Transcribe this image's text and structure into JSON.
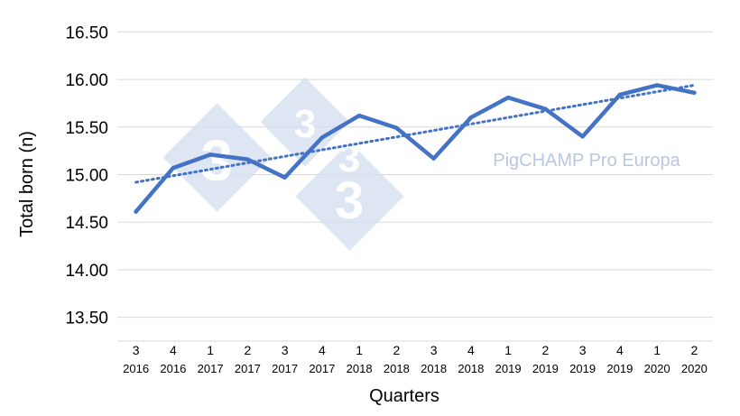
{
  "chart_data": {
    "type": "line",
    "title": "",
    "xlabel": "Quarters",
    "ylabel": "Total born (n)",
    "ylim": [
      13.25,
      16.75
    ],
    "yticks": [
      "16.50",
      "16.00",
      "15.50",
      "15.00",
      "14.50",
      "14.00",
      "13.50"
    ],
    "ytick_values": [
      16.5,
      16.0,
      15.5,
      15.0,
      14.5,
      14.0,
      13.5
    ],
    "categories": [
      {
        "quarter": "3",
        "year": "2016"
      },
      {
        "quarter": "4",
        "year": "2016"
      },
      {
        "quarter": "1",
        "year": "2017"
      },
      {
        "quarter": "2",
        "year": "2017"
      },
      {
        "quarter": "3",
        "year": "2017"
      },
      {
        "quarter": "4",
        "year": "2017"
      },
      {
        "quarter": "1",
        "year": "2018"
      },
      {
        "quarter": "2",
        "year": "2018"
      },
      {
        "quarter": "3",
        "year": "2018"
      },
      {
        "quarter": "4",
        "year": "2018"
      },
      {
        "quarter": "1",
        "year": "2019"
      },
      {
        "quarter": "2",
        "year": "2019"
      },
      {
        "quarter": "3",
        "year": "2019"
      },
      {
        "quarter": "4",
        "year": "2019"
      },
      {
        "quarter": "1",
        "year": "2020"
      },
      {
        "quarter": "2",
        "year": "2020"
      }
    ],
    "series": [
      {
        "values": [
          14.61,
          15.07,
          15.21,
          15.16,
          14.97,
          15.39,
          15.62,
          15.49,
          15.17,
          15.6,
          15.81,
          15.69,
          15.4,
          15.84,
          15.94,
          15.86
        ],
        "color": "#4472c4",
        "style": "solid"
      }
    ],
    "trendline": {
      "start": 14.92,
      "end": 15.94,
      "color": "#4472c4",
      "style": "dotted"
    },
    "grid": true,
    "legend": "none"
  },
  "watermark": {
    "text": "PigCHAMP Pro Europa",
    "logo_digits": [
      "3",
      "3",
      "3",
      "3"
    ],
    "color": "#c9d5ea"
  }
}
